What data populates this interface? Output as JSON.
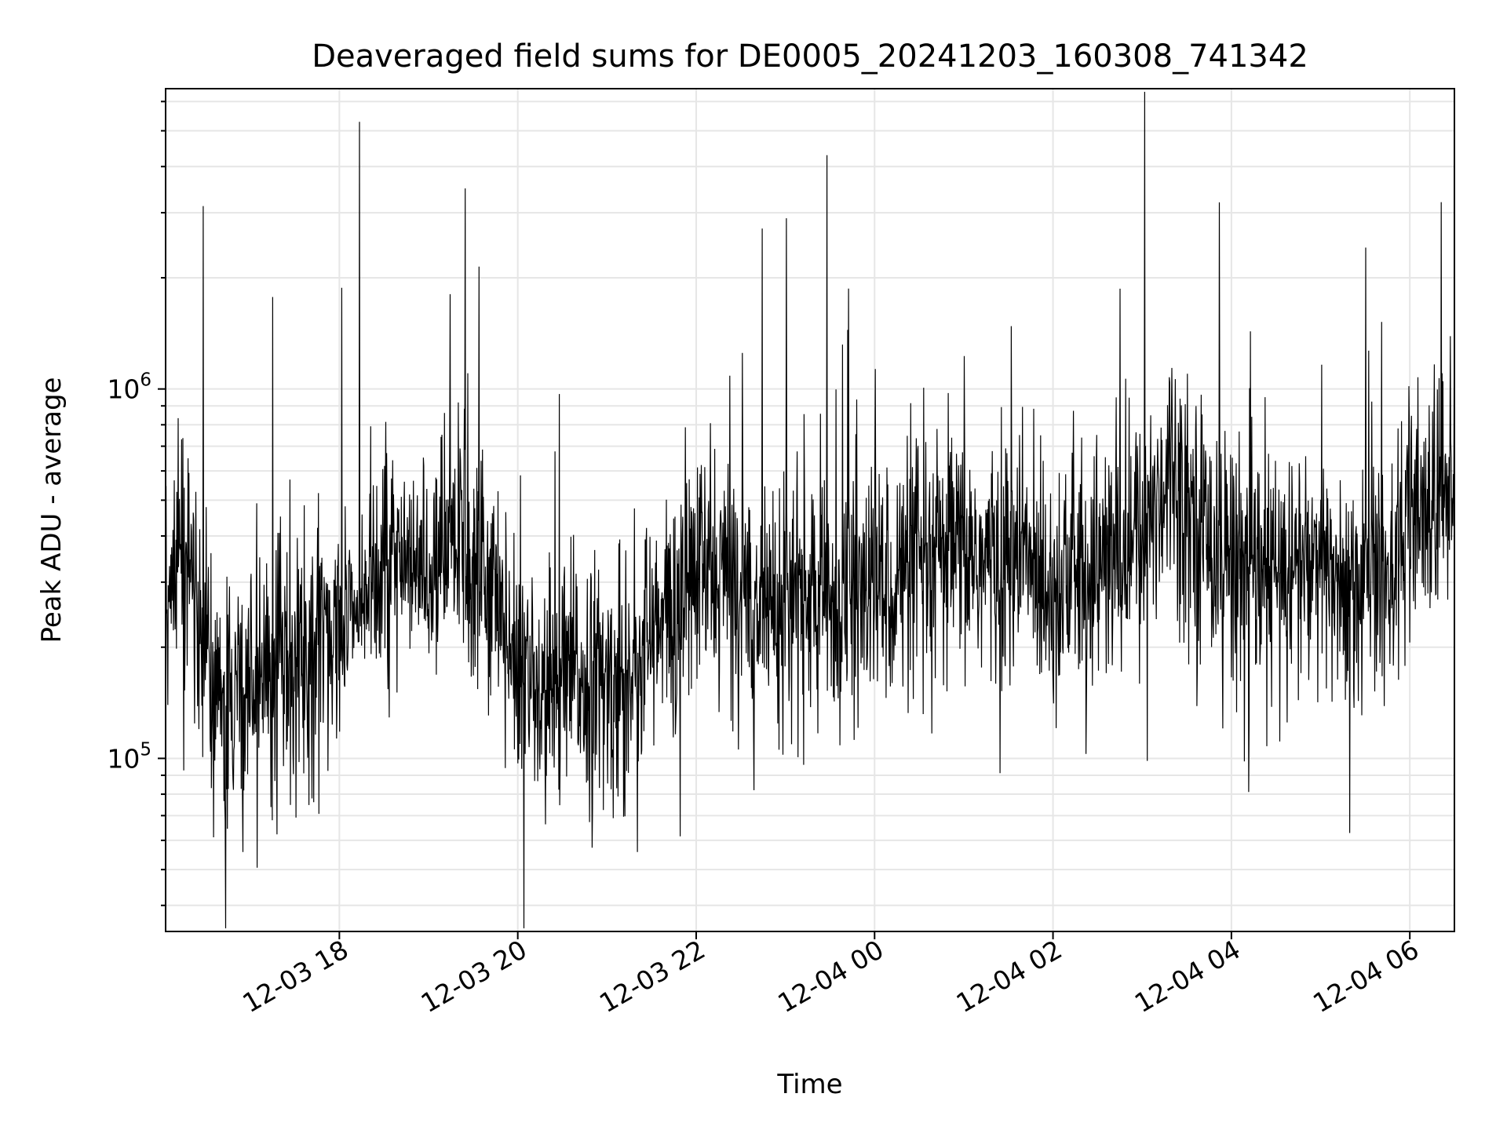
{
  "chart_data": {
    "type": "line",
    "title": "Deaveraged field sums for DE0005_20241203_160308_741342",
    "xlabel": "Time",
    "ylabel": "Peak ADU - average",
    "x_scale": "time",
    "y_scale": "log",
    "xlim": [
      "2024-12-03T16:03:08",
      "2024-12-04T06:30:00"
    ],
    "ylim": [
      34000,
      6500000
    ],
    "x_ticks": [
      {
        "value": "2024-12-03T18:00:00",
        "label": "12-03 18"
      },
      {
        "value": "2024-12-03T20:00:00",
        "label": "12-03 20"
      },
      {
        "value": "2024-12-03T22:00:00",
        "label": "12-03 22"
      },
      {
        "value": "2024-12-04T00:00:00",
        "label": "12-04 00"
      },
      {
        "value": "2024-12-04T02:00:00",
        "label": "12-04 02"
      },
      {
        "value": "2024-12-04T04:00:00",
        "label": "12-04 04"
      },
      {
        "value": "2024-12-04T06:00:00",
        "label": "12-04 06"
      }
    ],
    "y_ticks": [
      {
        "value": 100000,
        "base": "10",
        "exp": "5"
      },
      {
        "value": 1000000,
        "base": "10",
        "exp": "6"
      }
    ],
    "grid": true,
    "minor_grid": true,
    "legend": "none",
    "series": [
      {
        "color": "#000000",
        "x": [
          "2024-12-03T16:03:08",
          "2024-12-03T16:20:00",
          "2024-12-03T16:40:00",
          "2024-12-03T17:00:00",
          "2024-12-03T17:20:00",
          "2024-12-03T17:40:00",
          "2024-12-03T18:00:00",
          "2024-12-03T18:20:00",
          "2024-12-03T18:40:00",
          "2024-12-03T19:00:00",
          "2024-12-03T19:20:00",
          "2024-12-03T19:40:00",
          "2024-12-03T20:00:00",
          "2024-12-03T20:20:00",
          "2024-12-03T20:40:00",
          "2024-12-03T21:00:00",
          "2024-12-03T21:20:00",
          "2024-12-03T21:40:00",
          "2024-12-03T22:00:00",
          "2024-12-03T22:20:00",
          "2024-12-03T22:40:00",
          "2024-12-03T23:00:00",
          "2024-12-03T23:20:00",
          "2024-12-03T23:40:00",
          "2024-12-04T00:00:00",
          "2024-12-04T00:20:00",
          "2024-12-04T00:40:00",
          "2024-12-04T01:00:00",
          "2024-12-04T01:20:00",
          "2024-12-04T01:40:00",
          "2024-12-04T02:00:00",
          "2024-12-04T02:20:00",
          "2024-12-04T02:40:00",
          "2024-12-04T03:00:00",
          "2024-12-04T03:20:00",
          "2024-12-04T03:40:00",
          "2024-12-04T04:00:00",
          "2024-12-04T04:20:00",
          "2024-12-04T04:40:00",
          "2024-12-04T05:00:00",
          "2024-12-04T05:20:00",
          "2024-12-04T05:40:00",
          "2024-12-04T06:00:00",
          "2024-12-04T06:20:00",
          "2024-12-04T06:30:00"
        ],
        "y": [
          300000,
          330000,
          130000,
          150000,
          210000,
          200000,
          230000,
          340000,
          300000,
          330000,
          400000,
          330000,
          180000,
          140000,
          170000,
          150000,
          190000,
          230000,
          320000,
          310000,
          270000,
          280000,
          270000,
          260000,
          290000,
          310000,
          340000,
          360000,
          330000,
          350000,
          300000,
          320000,
          340000,
          400000,
          650000,
          420000,
          360000,
          300000,
          340000,
          320000,
          300000,
          320000,
          400000,
          520000,
          600000
        ]
      }
    ]
  }
}
